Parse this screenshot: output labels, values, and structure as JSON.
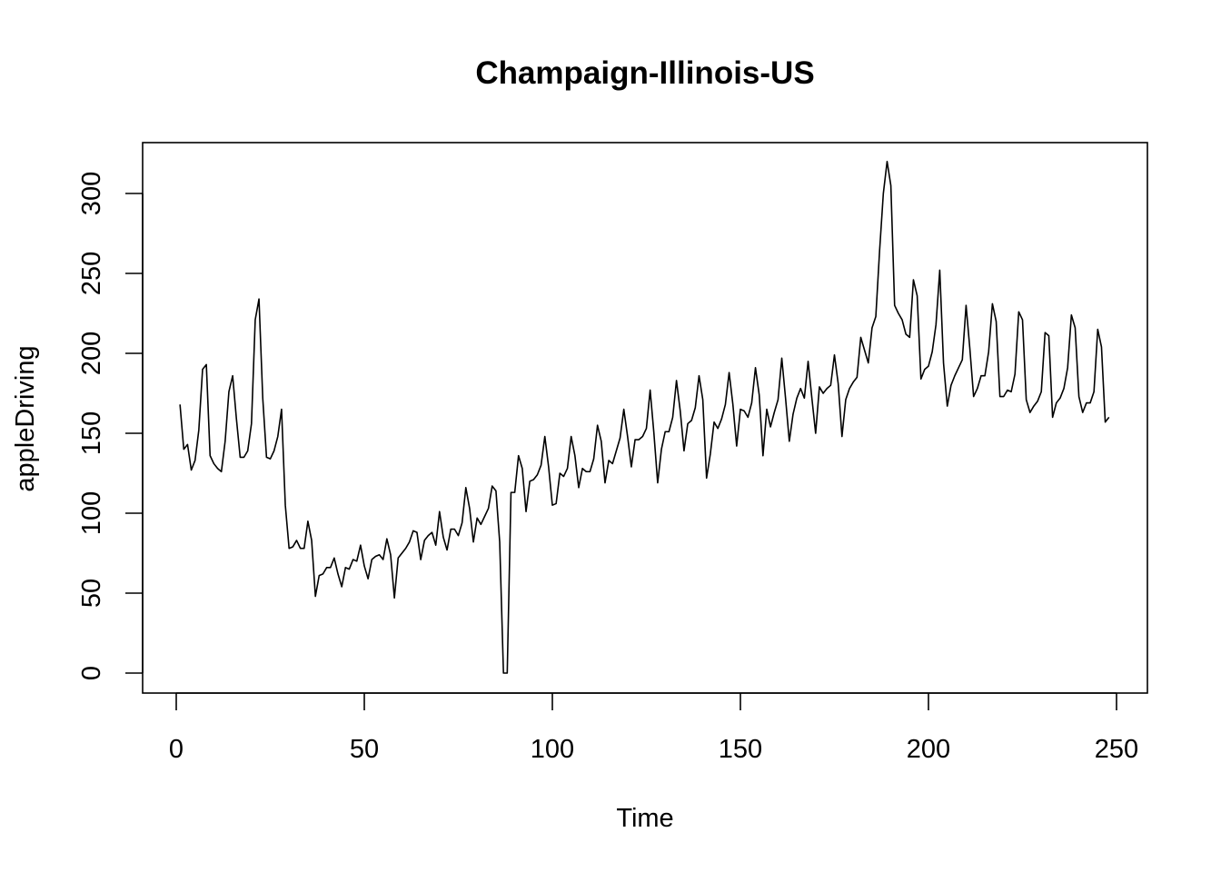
{
  "chart_data": {
    "type": "line",
    "title": "Champaign-Illinois-US",
    "xlabel": "Time",
    "ylabel": "appleDriving",
    "xlim": [
      0,
      250
    ],
    "ylim": [
      0,
      320
    ],
    "xticks": [
      0,
      50,
      100,
      150,
      200,
      250
    ],
    "yticks": [
      0,
      50,
      100,
      150,
      200,
      250,
      300
    ],
    "grid": false,
    "legend": "none",
    "series": [
      {
        "color": "#000000",
        "x": [
          1,
          2,
          3,
          4,
          5,
          6,
          7,
          8,
          9,
          10,
          11,
          12,
          13,
          14,
          15,
          16,
          17,
          18,
          19,
          20,
          21,
          22,
          23,
          24,
          25,
          26,
          27,
          28,
          29,
          30,
          31,
          32,
          33,
          34,
          35,
          36,
          37,
          38,
          39,
          40,
          41,
          42,
          43,
          44,
          45,
          46,
          47,
          48,
          49,
          50,
          51,
          52,
          53,
          54,
          55,
          56,
          57,
          58,
          59,
          60,
          61,
          62,
          63,
          64,
          65,
          66,
          67,
          68,
          69,
          70,
          71,
          72,
          73,
          74,
          75,
          76,
          77,
          78,
          79,
          80,
          81,
          82,
          83,
          84,
          85,
          86,
          87,
          88,
          89,
          90,
          91,
          92,
          93,
          94,
          95,
          96,
          97,
          98,
          99,
          100,
          101,
          102,
          103,
          104,
          105,
          106,
          107,
          108,
          109,
          110,
          111,
          112,
          113,
          114,
          115,
          116,
          117,
          118,
          119,
          120,
          121,
          122,
          123,
          124,
          125,
          126,
          127,
          128,
          129,
          130,
          131,
          132,
          133,
          134,
          135,
          136,
          137,
          138,
          139,
          140,
          141,
          142,
          143,
          144,
          145,
          146,
          147,
          148,
          149,
          150,
          151,
          152,
          153,
          154,
          155,
          156,
          157,
          158,
          159,
          160,
          161,
          162,
          163,
          164,
          165,
          166,
          167,
          168,
          169,
          170,
          171,
          172,
          173,
          174,
          175,
          176,
          177,
          178,
          179,
          180,
          181,
          182,
          183,
          184,
          185,
          186,
          187,
          188,
          189,
          190,
          191,
          192,
          193,
          194,
          195,
          196,
          197,
          198,
          199,
          200,
          201,
          202,
          203,
          204,
          205,
          206,
          207,
          208,
          209,
          210,
          211,
          212,
          213,
          214,
          215,
          216,
          217,
          218,
          219,
          220,
          221,
          222,
          223,
          224,
          225,
          226,
          227,
          228,
          229,
          230,
          231,
          232,
          233,
          234,
          235,
          236,
          237,
          238,
          239,
          240,
          241,
          242,
          243,
          244,
          245,
          246,
          247,
          248
        ],
        "y": [
          168,
          140,
          143,
          127,
          133,
          152,
          190,
          193,
          136,
          131,
          128,
          126,
          145,
          176,
          186,
          159,
          135,
          135,
          139,
          156,
          221,
          234,
          172,
          135,
          134,
          139,
          148,
          165,
          105,
          78,
          79,
          83,
          78,
          78,
          95,
          83,
          48,
          61,
          62,
          66,
          66,
          72,
          62,
          54,
          66,
          65,
          71,
          70,
          80,
          67,
          59,
          71,
          73,
          74,
          71,
          84,
          74,
          47,
          72,
          75,
          78,
          82,
          89,
          88,
          71,
          83,
          86,
          88,
          80,
          101,
          85,
          77,
          90,
          90,
          86,
          94,
          116,
          103,
          82,
          97,
          93,
          98,
          103,
          117,
          114,
          82,
          0,
          0,
          113,
          113,
          136,
          128,
          101,
          120,
          121,
          124,
          130,
          148,
          129,
          105,
          106,
          125,
          123,
          128,
          148,
          136,
          116,
          128,
          126,
          126,
          134,
          155,
          145,
          119,
          133,
          131,
          139,
          147,
          165,
          148,
          129,
          146,
          146,
          148,
          153,
          177,
          150,
          119,
          140,
          151,
          151,
          160,
          183,
          164,
          139,
          156,
          158,
          166,
          186,
          171,
          122,
          137,
          157,
          153,
          159,
          168,
          188,
          168,
          142,
          165,
          164,
          160,
          169,
          191,
          174,
          136,
          165,
          154,
          163,
          171,
          197,
          172,
          145,
          162,
          172,
          178,
          172,
          195,
          172,
          150,
          179,
          175,
          178,
          180,
          199,
          181,
          148,
          171,
          178,
          182,
          185,
          210,
          202,
          194,
          216,
          223,
          264,
          300,
          320,
          305,
          230,
          225,
          221,
          212,
          210,
          246,
          236,
          184,
          190,
          192,
          201,
          218,
          252,
          194,
          167,
          180,
          186,
          191,
          196,
          230,
          203,
          173,
          178,
          186,
          186,
          201,
          231,
          220,
          173,
          173,
          177,
          176,
          187,
          226,
          221,
          171,
          163,
          167,
          170,
          176,
          213,
          211,
          160,
          169,
          172,
          178,
          191,
          224,
          216,
          173,
          163,
          169,
          169,
          176,
          215,
          204,
          157,
          160
        ]
      }
    ]
  }
}
